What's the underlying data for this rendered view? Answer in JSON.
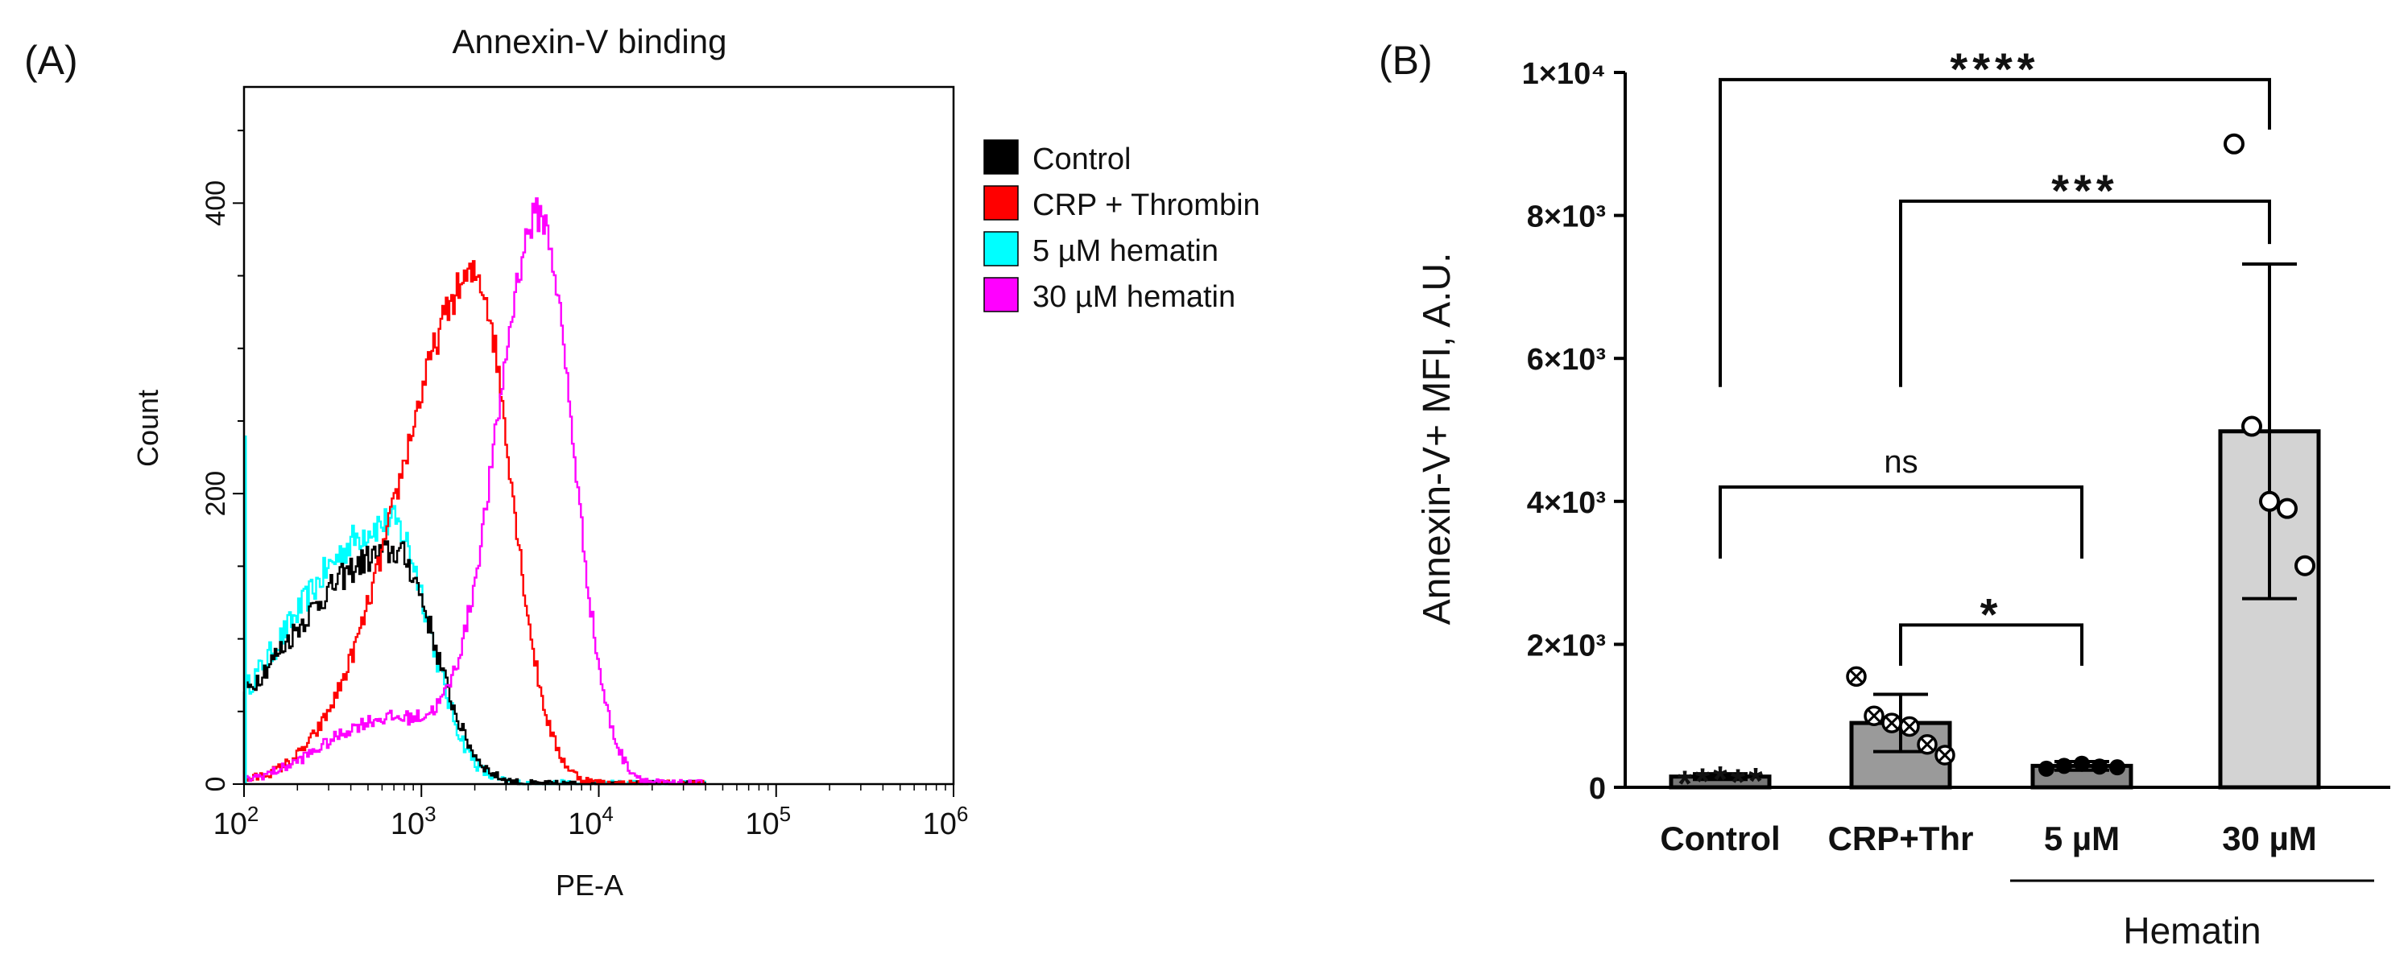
{
  "panel_a": {
    "label": "(A)",
    "chart_data": {
      "type": "histogram",
      "title": "Annexin-V binding",
      "xlabel": "PE-A",
      "ylabel": "Count",
      "x_scale": "log10",
      "xlim": [
        100,
        1000000
      ],
      "ylim": [
        0,
        480
      ],
      "x_tick_exponents": [
        2,
        3,
        4,
        5,
        6
      ],
      "x_tick_base": "10",
      "y_ticks": [
        0,
        200,
        400
      ],
      "legend": "top-right",
      "series": [
        {
          "name": "Control",
          "color": "#000000",
          "peak_log10": 2.85,
          "peak_count": 160,
          "width_low": 0.62,
          "width_high": 0.22,
          "start_count": 30,
          "noise": 10
        },
        {
          "name": "CRP + Thrombin",
          "color": "#ff0000",
          "peak_log10": 3.3,
          "peak_count": 350,
          "width_low": 0.42,
          "width_high": 0.2,
          "start_count": 8,
          "noise": 12
        },
        {
          "name": "5 µM hematin",
          "color": "#00ffff",
          "peak_log10": 2.83,
          "peak_count": 180,
          "width_low": 0.58,
          "width_high": 0.21,
          "start_count": 30,
          "noise": 12
        },
        {
          "name": "30 µM hematin",
          "color": "#ff00ff",
          "peak_log10": 3.66,
          "peak_count": 390,
          "width_low": 0.24,
          "width_high": 0.19,
          "shoulder_log10": 2.8,
          "shoulder_count": 45,
          "start_count": 4,
          "noise": 12
        }
      ]
    }
  },
  "panel_b": {
    "label": "(B)",
    "chart_data": {
      "type": "bar",
      "ylabel": "Annexin-V+ MFI, A.U.",
      "categories": [
        "Control",
        "CRP+Thr",
        "5 µM",
        "30 µM"
      ],
      "group_label": "Hematin",
      "group_members": [
        "5 µM",
        "30 µM"
      ],
      "ylim": [
        0,
        10000
      ],
      "y_ticks": [
        {
          "value": 0,
          "label": "0"
        },
        {
          "value": 2000,
          "label": "2×10³"
        },
        {
          "value": 4000,
          "label": "4×10³"
        },
        {
          "value": 6000,
          "label": "6×10³"
        },
        {
          "value": 8000,
          "label": "8×10³"
        },
        {
          "value": 10000,
          "label": "1×10⁴"
        }
      ],
      "bars": [
        {
          "category": "Control",
          "mean": 150,
          "sd": 40,
          "color": "#777777",
          "marker": "asterisk",
          "points": [
            120,
            150,
            180,
            140,
            160
          ]
        },
        {
          "category": "CRP+Thr",
          "mean": 900,
          "sd": 400,
          "color": "#9a9a9a",
          "marker": "circle-x",
          "points": [
            1550,
            1000,
            900,
            850,
            600,
            450
          ]
        },
        {
          "category": "5 µM",
          "mean": 300,
          "sd": 60,
          "color": "#888888",
          "marker": "filled-circle",
          "points": [
            260,
            300,
            330,
            290,
            280
          ]
        },
        {
          "category": "30 µM",
          "mean": 4980,
          "sd": 2340,
          "color": "#d3d3d3",
          "marker": "open-circle",
          "points": [
            9000,
            5050,
            4000,
            3900,
            3100
          ]
        }
      ],
      "significance": [
        {
          "from": "Control",
          "to": "30 µM",
          "label": "****",
          "y": 9900,
          "left_drop": 5600,
          "right_drop": 9200
        },
        {
          "from": "CRP+Thr",
          "to": "30 µM",
          "label": "***",
          "y": 8200,
          "left_drop": 5600,
          "right_drop": 7600
        },
        {
          "from": "Control",
          "to": "5 µM",
          "label": "ns",
          "y": 4200,
          "left_drop": 3200,
          "right_drop": 3200
        },
        {
          "from": "CRP+Thr",
          "to": "5 µM",
          "label": "*",
          "y": 2270,
          "left_drop": 1700,
          "right_drop": 1700
        }
      ]
    }
  }
}
